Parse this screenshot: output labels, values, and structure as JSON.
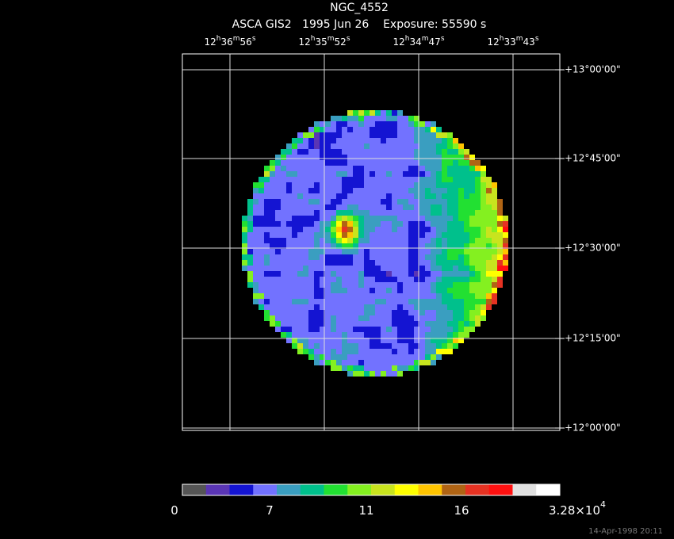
{
  "header": {
    "title": "NGC_4552",
    "subtitle": "ASCA GIS2   1995 Jun 26    Exposure: 55590 s"
  },
  "ra_labels": [
    [
      "12",
      "h",
      "36",
      "m",
      "56",
      "s"
    ],
    [
      "12",
      "h",
      "35",
      "m",
      "52",
      "s"
    ],
    [
      "12",
      "h",
      "34",
      "m",
      "47",
      "s"
    ],
    [
      "12",
      "h",
      "33",
      "m",
      "43",
      "s"
    ]
  ],
  "dec_labels": [
    "+13°00'00\"",
    "+12°45'00\"",
    "+12°30'00\"",
    "+12°15'00\"",
    "+12°00'00\""
  ],
  "colorbar": {
    "colors": [
      "#555555",
      "#5a35b5",
      "#1414d2",
      "#7272ff",
      "#3a9ec0",
      "#00c08c",
      "#22e032",
      "#84f020",
      "#c8e41e",
      "#ffff00",
      "#ffc400",
      "#b06414",
      "#e63222",
      "#ff1010",
      "#e0e0e0",
      "#ffffff"
    ],
    "labels": [
      [
        "0"
      ],
      [
        "7"
      ],
      [
        "11"
      ],
      [
        "16"
      ],
      [
        "3.28×10",
        "4"
      ]
    ]
  },
  "timestamp": "14-Apr-1998 20:11"
}
